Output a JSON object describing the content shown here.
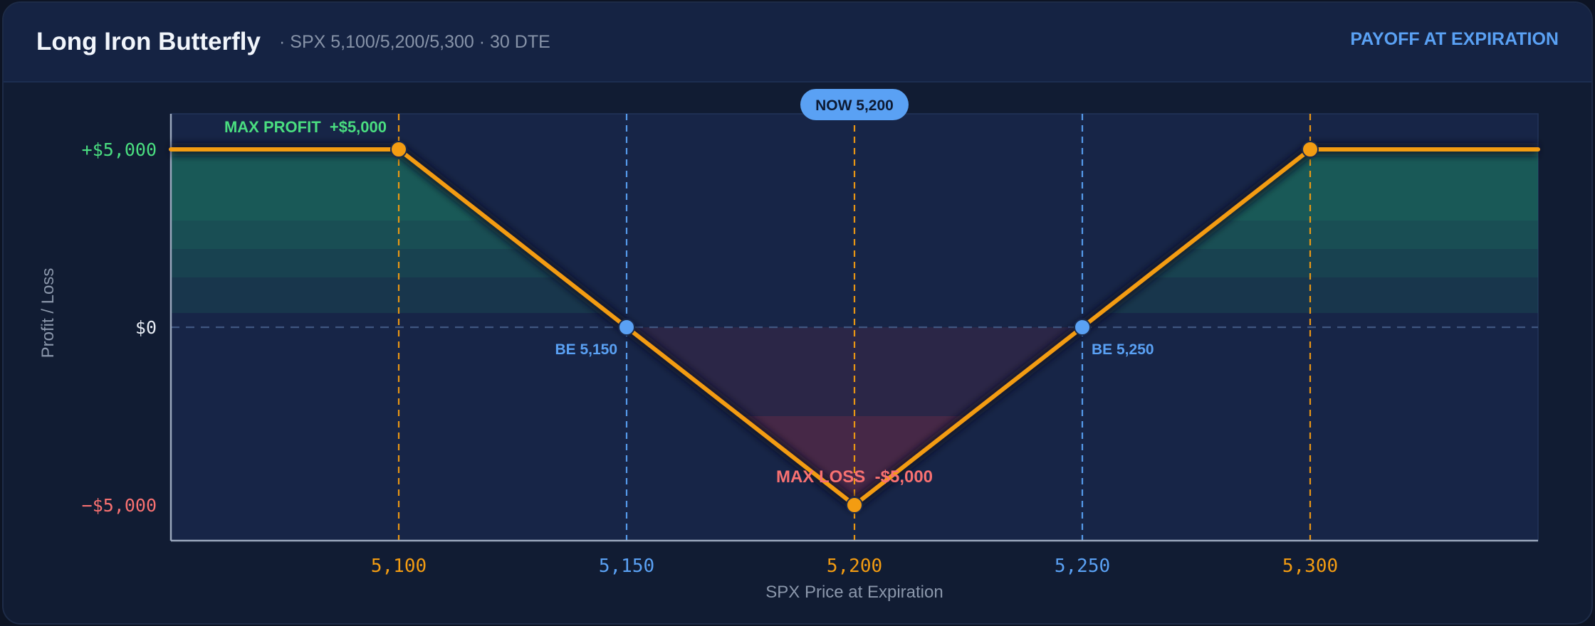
{
  "header": {
    "title": "Long Iron Butterfly",
    "subtitle": "· SPX 5,100/5,200/5,300 · 30 DTE",
    "badge": "PAYOFF AT EXPIRATION"
  },
  "colors": {
    "background": "#0d1424",
    "card": "#111c33",
    "plot": "#172547",
    "payoff_line": "#f39c12",
    "profit": "#4ade80",
    "loss": "#f87171",
    "breakeven": "#5aa1f4",
    "axis": "#9aa7bd"
  },
  "chart_data": {
    "type": "line",
    "xlabel": "SPX Price at Expiration",
    "ylabel": "Profit / Loss",
    "xlim": [
      5050,
      5350
    ],
    "ylim": [
      -6000,
      6000
    ],
    "grid": false,
    "series": [
      {
        "x": [
          5050,
          5100,
          5150,
          5200,
          5250,
          5300,
          5350
        ],
        "y": [
          5000,
          5000,
          0,
          -5000,
          0,
          5000,
          5000
        ]
      }
    ],
    "x_ticks": [
      {
        "value": 5100,
        "label": "5,100",
        "kind": "strike"
      },
      {
        "value": 5150,
        "label": "5,150",
        "kind": "breakeven"
      },
      {
        "value": 5200,
        "label": "5,200",
        "kind": "strike"
      },
      {
        "value": 5250,
        "label": "5,250",
        "kind": "breakeven"
      },
      {
        "value": 5300,
        "label": "5,300",
        "kind": "strike"
      }
    ],
    "y_ticks": [
      {
        "value": 5000,
        "label": "+$5,000",
        "kind": "profit"
      },
      {
        "value": 0,
        "label": "$0",
        "kind": "zero"
      },
      {
        "value": -5000,
        "label": "−$5,000",
        "kind": "loss"
      }
    ],
    "current_price": {
      "value": 5200,
      "label": "NOW 5,200"
    },
    "annotations": {
      "max_profit": {
        "label": "MAX PROFIT  +$5,000",
        "x": 5100,
        "y": 5000
      },
      "max_loss": {
        "label": "MAX LOSS  -$5,000",
        "x": 5200,
        "y": -5000
      },
      "breakevens": [
        {
          "label": "BE 5,150",
          "x": 5150,
          "y": 0,
          "side": "left"
        },
        {
          "label": "BE 5,250",
          "x": 5250,
          "y": 0,
          "side": "right"
        }
      ]
    },
    "markers": [
      {
        "x": 5100,
        "y": 5000,
        "kind": "strike"
      },
      {
        "x": 5150,
        "y": 0,
        "kind": "breakeven"
      },
      {
        "x": 5200,
        "y": -5000,
        "kind": "strike"
      },
      {
        "x": 5250,
        "y": 0,
        "kind": "breakeven"
      },
      {
        "x": 5300,
        "y": 5000,
        "kind": "strike"
      }
    ]
  }
}
